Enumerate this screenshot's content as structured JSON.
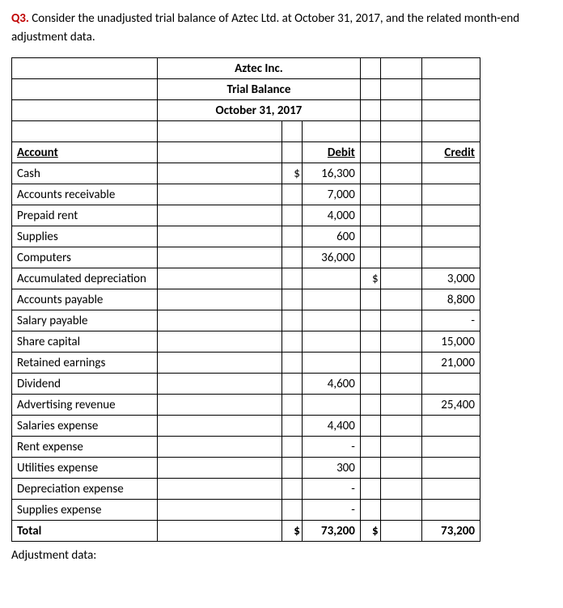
{
  "question": {
    "prefix": "Q3.",
    "text": " Consider the unadjusted trial balance of Aztec Ltd. at October 31, 2017, and the related month-end adjustment data."
  },
  "table": {
    "company": "Aztec Inc.",
    "title": "Trial Balance",
    "date": "October 31, 2017",
    "headers": {
      "account": "Account",
      "debit": "Debit",
      "credit": "Credit"
    },
    "rows": [
      {
        "account": "Cash",
        "dsym": "$",
        "debit": "16,300",
        "csym": "",
        "credit": ""
      },
      {
        "account": "Accounts receivable",
        "dsym": "",
        "debit": "7,000",
        "csym": "",
        "credit": ""
      },
      {
        "account": "Prepaid rent",
        "dsym": "",
        "debit": "4,000",
        "csym": "",
        "credit": ""
      },
      {
        "account": "Supplies",
        "dsym": "",
        "debit": "600",
        "csym": "",
        "credit": ""
      },
      {
        "account": "Computers",
        "dsym": "",
        "debit": "36,000",
        "csym": "",
        "credit": ""
      },
      {
        "account": "Accumulated depreciation",
        "dsym": "",
        "debit": "",
        "csym": "$",
        "credit": "3,000"
      },
      {
        "account": "Accounts payable",
        "dsym": "",
        "debit": "",
        "csym": "",
        "credit": "8,800"
      },
      {
        "account": "Salary payable",
        "dsym": "",
        "debit": "",
        "csym": "",
        "credit": "-"
      },
      {
        "account": "Share capital",
        "dsym": "",
        "debit": "",
        "csym": "",
        "credit": "15,000"
      },
      {
        "account": "Retained earnings",
        "dsym": "",
        "debit": "",
        "csym": "",
        "credit": "21,000"
      },
      {
        "account": "Dividend",
        "dsym": "",
        "debit": "4,600",
        "csym": "",
        "credit": ""
      },
      {
        "account": "Advertising revenue",
        "dsym": "",
        "debit": "",
        "csym": "",
        "credit": "25,400"
      },
      {
        "account": "Salaries expense",
        "dsym": "",
        "debit": "4,400",
        "csym": "",
        "credit": ""
      },
      {
        "account": "Rent expense",
        "dsym": "",
        "debit": "-",
        "csym": "",
        "credit": ""
      },
      {
        "account": "Utilities expense",
        "dsym": "",
        "debit": "300",
        "csym": "",
        "credit": ""
      },
      {
        "account": "Depreciation expense",
        "dsym": "",
        "debit": "-",
        "csym": "",
        "credit": ""
      },
      {
        "account": "Supplies expense",
        "dsym": "",
        "debit": "-",
        "csym": "",
        "credit": ""
      }
    ],
    "total": {
      "label": "Total",
      "dsym": "$",
      "debit": "73,200",
      "csym": "$",
      "credit": "73,200"
    }
  },
  "footer": "Adjustment data:",
  "colors": {
    "prefix": "#c00000",
    "border": "#000000"
  }
}
